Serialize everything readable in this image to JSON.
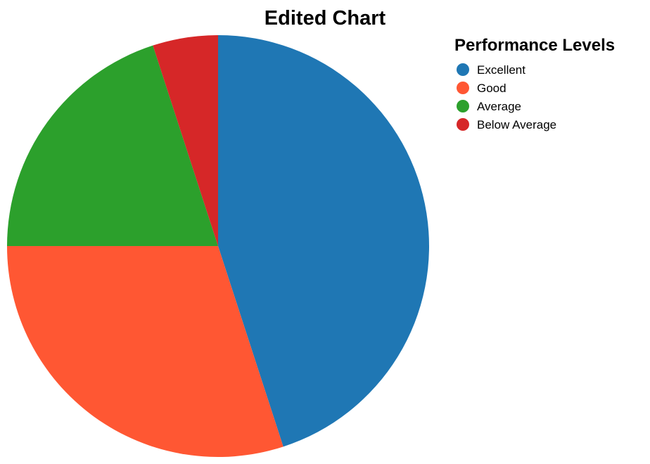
{
  "chart_data": {
    "type": "pie",
    "title": "Edited Chart",
    "legend_title": "Performance Levels",
    "legend_position": "top-right",
    "categories": [
      "Excellent",
      "Good",
      "Average",
      "Below Average"
    ],
    "values": [
      45,
      30,
      20,
      5
    ],
    "colors": [
      "#1f77b4",
      "#ff5733",
      "#2ca02c",
      "#d62728"
    ]
  }
}
